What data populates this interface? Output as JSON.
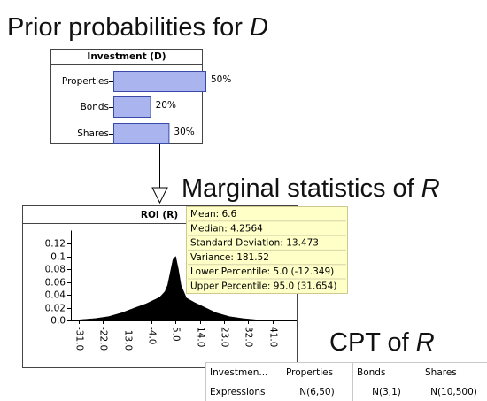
{
  "headings": {
    "prior": {
      "text": "Prior probabilities for",
      "var": "D"
    },
    "marginal": {
      "text": "Marginal statistics of",
      "var": "R"
    },
    "cpt": {
      "text": "CPT of",
      "var": "R"
    }
  },
  "investment_node": {
    "title": "Investment (D)",
    "xlim": [
      0,
      100
    ],
    "color": "#aab4ee",
    "states": [
      {
        "name": "Properties",
        "value": 50,
        "label": "50%"
      },
      {
        "name": "Bonds",
        "value": 20,
        "label": "20%"
      },
      {
        "name": "Shares",
        "value": 30,
        "label": "30%"
      }
    ]
  },
  "roi_node": {
    "title": "ROI (R)",
    "color": "#000000",
    "xlim": [
      -34,
      50
    ],
    "ylim": [
      0,
      0.14
    ],
    "yticks": [
      0.12,
      0.1,
      0.08,
      0.06,
      0.04,
      0.02,
      {
        "value": 0,
        "label": "0.0"
      }
    ],
    "xticks": [
      {
        "value": -31,
        "label": "-31.0"
      },
      {
        "value": -22,
        "label": "-22.0"
      },
      {
        "value": -13,
        "label": "-13.0"
      },
      {
        "value": -4,
        "label": "-4.0"
      },
      {
        "value": 5,
        "label": "5.0"
      },
      {
        "value": 14,
        "label": "14.0"
      },
      {
        "value": 23,
        "label": "23.0"
      },
      {
        "value": 32,
        "label": "32.0"
      },
      {
        "value": 41,
        "label": "41.0"
      }
    ],
    "density": {
      "x": [
        -31,
        -25,
        -20,
        -15,
        -10,
        -6,
        -3,
        -1,
        1,
        2,
        3,
        4,
        5,
        6,
        7,
        9,
        12,
        16,
        20,
        25,
        30,
        35,
        41,
        45
      ],
      "y": [
        0.001,
        0.003,
        0.006,
        0.012,
        0.02,
        0.026,
        0.032,
        0.036,
        0.045,
        0.055,
        0.075,
        0.095,
        0.1,
        0.08,
        0.055,
        0.035,
        0.028,
        0.02,
        0.012,
        0.006,
        0.003,
        0.001,
        0.0005,
        0
      ]
    }
  },
  "statistics": [
    "Mean: 6.6",
    "Median: 4.2564",
    "Standard Deviation: 13.473",
    "Variance: 181.52",
    "Lower Percentile: 5.0 (-12.349)",
    "Upper Percentile: 95.0 (31.654)"
  ],
  "cpt_table": {
    "header": [
      "Investmen...",
      "Properties",
      "Bonds",
      "Shares"
    ],
    "rows": [
      [
        "Expressions",
        "N(6,50)",
        "N(3,1)",
        "N(10,500)"
      ]
    ]
  }
}
